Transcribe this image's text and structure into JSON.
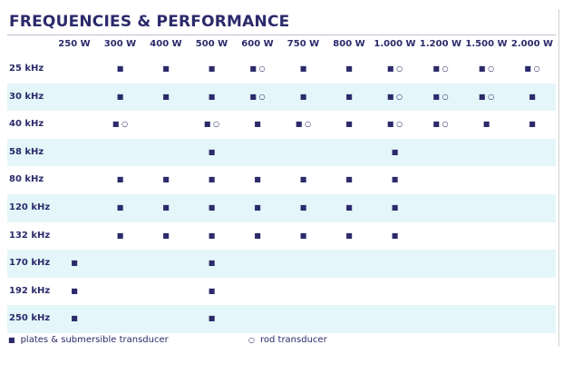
{
  "header": {
    "title": "FREQUENCIES & PERFORMANCE"
  },
  "table": {
    "columns": [
      "250 W",
      "300 W",
      "400 W",
      "500 W",
      "600 W",
      "750 W",
      "800 W",
      "1.000 W",
      "1.200 W",
      "1.500 W",
      "2.000 W"
    ],
    "rows": [
      {
        "label": "25 kHz",
        "cells": [
          null,
          "■",
          "■",
          "■",
          "■ ○",
          "■",
          "■",
          "■ ○",
          "■ ○",
          "■ ○",
          "■ ○"
        ]
      },
      {
        "label": "30 kHz",
        "cells": [
          null,
          "■",
          "■",
          "■",
          "■ ○",
          "■",
          "■",
          "■ ○",
          "■ ○",
          "■ ○",
          "■"
        ]
      },
      {
        "label": "40 kHz",
        "cells": [
          null,
          "■ ○",
          null,
          "■ ○",
          "■",
          "■ ○",
          "■",
          "■ ○",
          "■ ○",
          "■",
          "■"
        ]
      },
      {
        "label": "58 kHz",
        "cells": [
          null,
          null,
          null,
          "■",
          null,
          null,
          null,
          "■",
          null,
          null,
          null
        ]
      },
      {
        "label": "80 kHz",
        "cells": [
          null,
          "■",
          "■",
          "■",
          "■",
          "■",
          "■",
          "■",
          null,
          null,
          null
        ]
      },
      {
        "label": "120 kHz",
        "cells": [
          null,
          "■",
          "■",
          "■",
          "■",
          "■",
          "■",
          "■",
          null,
          null,
          null
        ]
      },
      {
        "label": "132 kHz",
        "cells": [
          null,
          "■",
          "■",
          "■",
          "■",
          "■",
          "■",
          "■",
          null,
          null,
          null
        ]
      },
      {
        "label": "170 kHz",
        "cells": [
          "■",
          null,
          null,
          "■",
          null,
          null,
          null,
          null,
          null,
          null,
          null
        ]
      },
      {
        "label": "192 kHz",
        "cells": [
          "■",
          null,
          null,
          "■",
          null,
          null,
          null,
          null,
          null,
          null,
          null
        ]
      },
      {
        "label": "250 kHz",
        "cells": [
          "■",
          null,
          null,
          "■",
          null,
          null,
          null,
          null,
          null,
          null,
          null
        ]
      }
    ]
  },
  "legend": [
    {
      "symbol": "■",
      "label": "plates & submersible transducer"
    },
    {
      "symbol": "○",
      "label": "rod transducer"
    }
  ]
}
